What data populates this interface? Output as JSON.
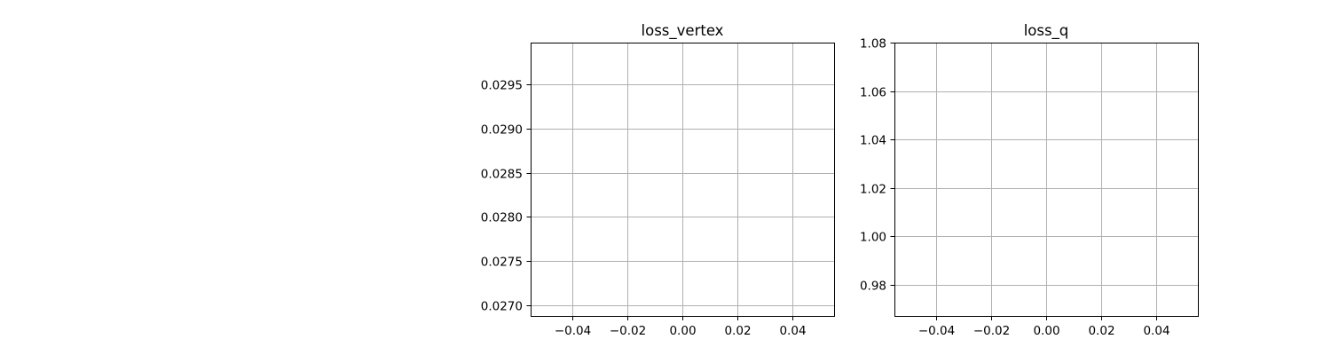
{
  "figure": {
    "background": "#ffffff"
  },
  "chart_data": [
    {
      "type": "line",
      "title": "loss_vertex",
      "xlabel": "",
      "ylabel": "",
      "xlim": [
        -0.055,
        0.055
      ],
      "ylim": [
        0.02688,
        0.02997
      ],
      "xticks": [
        -0.04,
        -0.02,
        0.0,
        0.02,
        0.04
      ],
      "xtick_labels": [
        "−0.04",
        "−0.02",
        "0.00",
        "0.02",
        "0.04"
      ],
      "yticks": [
        0.027,
        0.0275,
        0.028,
        0.0285,
        0.029,
        0.0295
      ],
      "ytick_labels": [
        "0.0270",
        "0.0275",
        "0.0280",
        "0.0285",
        "0.0290",
        "0.0295"
      ],
      "grid": true,
      "series": []
    },
    {
      "type": "line",
      "title": "loss_q",
      "xlabel": "",
      "ylabel": "",
      "xlim": [
        -0.055,
        0.055
      ],
      "ylim": [
        0.967,
        1.08
      ],
      "xticks": [
        -0.04,
        -0.02,
        0.0,
        0.02,
        0.04
      ],
      "xtick_labels": [
        "−0.04",
        "−0.02",
        "0.00",
        "0.02",
        "0.04"
      ],
      "yticks": [
        0.98,
        1.0,
        1.02,
        1.04,
        1.06,
        1.08
      ],
      "ytick_labels": [
        "0.98",
        "1.00",
        "1.02",
        "1.04",
        "1.06",
        "1.08"
      ],
      "grid": true,
      "series": []
    }
  ],
  "style": {
    "axis_color": "#000000",
    "grid_color": "#b0b0b0",
    "text_color": "#000000"
  }
}
